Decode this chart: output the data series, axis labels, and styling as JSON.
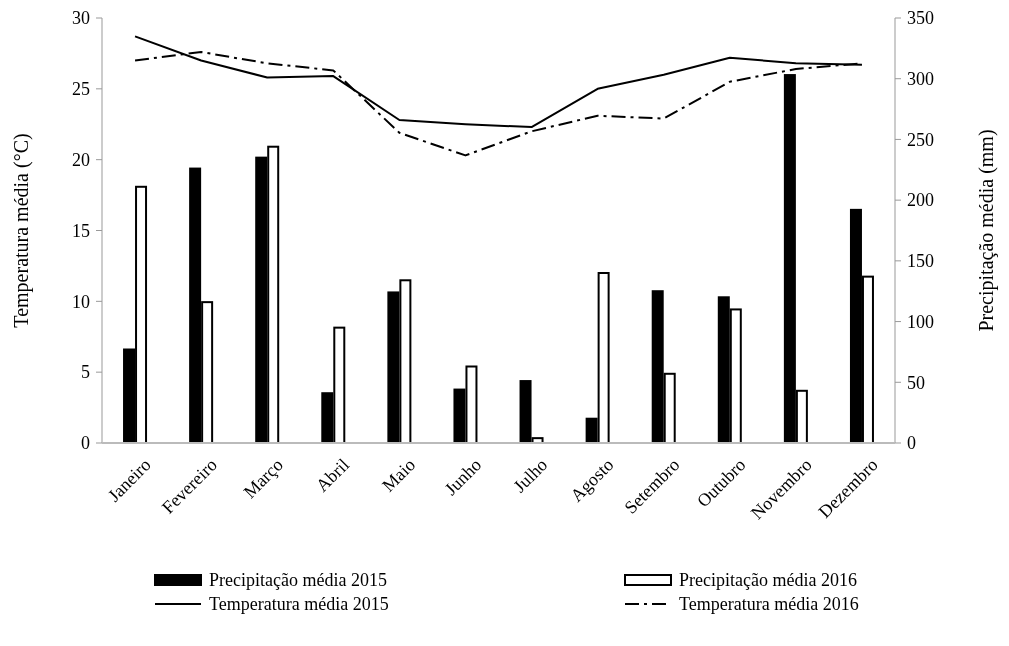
{
  "chart_data": {
    "type": "bar",
    "categories": [
      "Janeiro",
      "Fevereiro",
      "Março",
      "Abril",
      "Maio",
      "Junho",
      "Julho",
      "Agosto",
      "Setembro",
      "Outubro",
      "Novembro",
      "Dezembro"
    ],
    "ylabel": "Temperatura média (°C)",
    "y2label": "Precipitação média (mm)",
    "ylim": [
      0,
      30
    ],
    "yticks": [
      0,
      5,
      10,
      15,
      20,
      25,
      30
    ],
    "y2lim": [
      0,
      350
    ],
    "y2ticks": [
      0,
      50,
      100,
      150,
      200,
      250,
      300,
      350
    ],
    "grid": false,
    "legend": "bottom",
    "series": [
      {
        "name": "Precipitação média 2015",
        "axis": "y2",
        "color": "#000000",
        "values": [
          77,
          226,
          235,
          41,
          124,
          44,
          51,
          20,
          125,
          120,
          303,
          192
        ]
      },
      {
        "name": "Precipitação média 2016",
        "axis": "y2",
        "color": "#ffffff",
        "values": [
          211,
          116,
          244,
          95,
          134,
          63,
          4,
          140,
          57,
          110,
          43,
          137
        ]
      },
      {
        "name": "Temperatura média  2015",
        "type": "line",
        "color": "#000000",
        "line_style": "solid",
        "values": [
          28.7,
          27.0,
          25.8,
          25.9,
          22.8,
          22.5,
          22.3,
          25.0,
          26.0,
          27.2,
          26.8,
          26.7
        ]
      },
      {
        "name": "Temperatura média  2016",
        "type": "line",
        "color": "#000000",
        "line_style": "dashed",
        "values": [
          27.0,
          27.6,
          26.8,
          26.3,
          21.9,
          20.3,
          22.0,
          23.1,
          22.9,
          25.5,
          26.4,
          26.8
        ]
      }
    ]
  }
}
